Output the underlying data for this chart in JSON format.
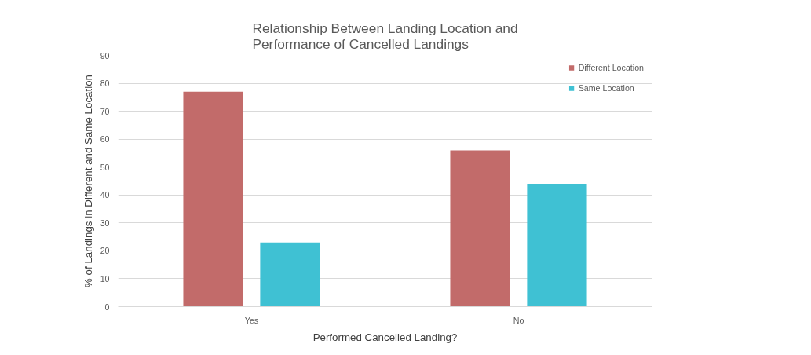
{
  "chart_data": {
    "type": "bar",
    "title": "Relationship Between Landing Location and Performance of Cancelled Landings",
    "xlabel": "Performed Cancelled Landing?",
    "ylabel": "% of Landings in Different and Same Location",
    "categories": [
      "Yes",
      "No"
    ],
    "series": [
      {
        "name": "Different Location",
        "color": "#c26b6a",
        "values": [
          77,
          56
        ]
      },
      {
        "name": "Same Location",
        "color": "#3fc1d3",
        "values": [
          23,
          44
        ]
      }
    ],
    "ylim": [
      0,
      90
    ],
    "yticks": [
      0,
      10,
      20,
      30,
      40,
      50,
      60,
      70,
      80,
      90
    ],
    "grid": "y",
    "legend": "top right"
  }
}
